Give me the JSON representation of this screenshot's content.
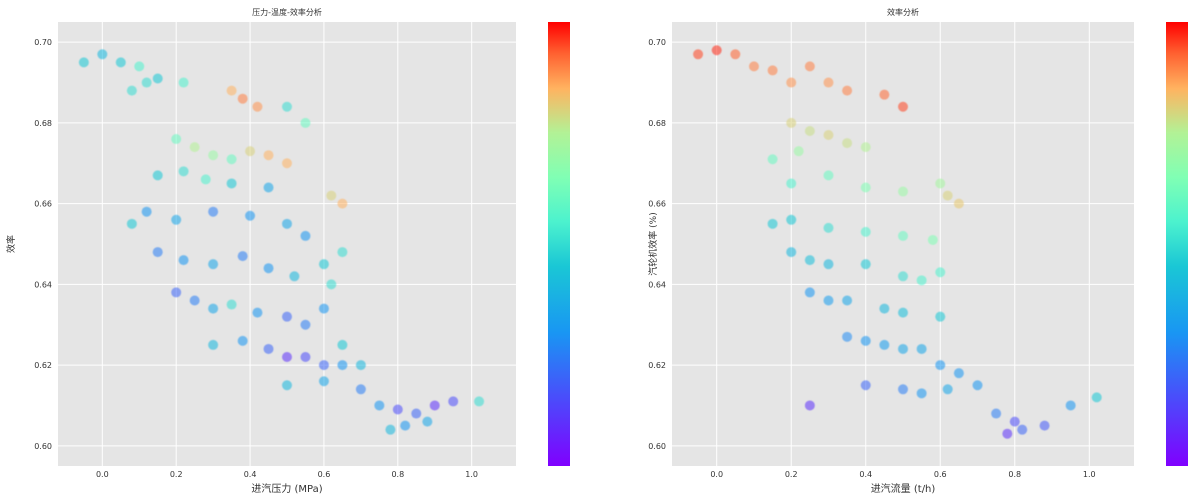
{
  "figure": {
    "background": "#ffffff",
    "plot_background": "#e5e5e5"
  },
  "chart_data": [
    {
      "type": "scatter",
      "title": "压力-温度-效率分析",
      "xlabel": "进汽压力 (MPa)",
      "ylabel": "效率",
      "xlim": [
        -0.12,
        1.12
      ],
      "ylim": [
        0.595,
        0.705
      ],
      "xticks": [
        "0.0",
        "0.2",
        "0.4",
        "0.6",
        "0.8",
        "1.0"
      ],
      "xtick_values": [
        0.0,
        0.2,
        0.4,
        0.6,
        0.8,
        1.0
      ],
      "yticks": [
        "0.60",
        "0.62",
        "0.64",
        "0.66",
        "0.68",
        "0.70"
      ],
      "ytick_values": [
        0.6,
        0.62,
        0.64,
        0.66,
        0.68,
        0.7
      ],
      "grid": true,
      "colorbar": {
        "colormap": "rainbow",
        "position": "right"
      },
      "series": [
        {
          "points": [
            [
              -0.05,
              0.695,
              0.45
            ],
            [
              0.0,
              0.697,
              0.4
            ],
            [
              0.05,
              0.695,
              0.45
            ],
            [
              0.08,
              0.688,
              0.5
            ],
            [
              0.1,
              0.694,
              0.55
            ],
            [
              0.12,
              0.69,
              0.5
            ],
            [
              0.15,
              0.691,
              0.45
            ],
            [
              0.22,
              0.69,
              0.55
            ],
            [
              0.35,
              0.688,
              0.85
            ],
            [
              0.38,
              0.686,
              0.9
            ],
            [
              0.42,
              0.684,
              0.88
            ],
            [
              0.5,
              0.684,
              0.5
            ],
            [
              0.55,
              0.68,
              0.6
            ],
            [
              0.2,
              0.676,
              0.6
            ],
            [
              0.25,
              0.674,
              0.75
            ],
            [
              0.3,
              0.672,
              0.7
            ],
            [
              0.35,
              0.671,
              0.6
            ],
            [
              0.4,
              0.673,
              0.8
            ],
            [
              0.45,
              0.672,
              0.85
            ],
            [
              0.5,
              0.67,
              0.85
            ],
            [
              0.15,
              0.667,
              0.45
            ],
            [
              0.22,
              0.668,
              0.5
            ],
            [
              0.28,
              0.666,
              0.55
            ],
            [
              0.35,
              0.665,
              0.45
            ],
            [
              0.45,
              0.664,
              0.35
            ],
            [
              0.62,
              0.662,
              0.8
            ],
            [
              0.65,
              0.66,
              0.85
            ],
            [
              0.08,
              0.655,
              0.45
            ],
            [
              0.12,
              0.658,
              0.3
            ],
            [
              0.2,
              0.656,
              0.35
            ],
            [
              0.3,
              0.658,
              0.25
            ],
            [
              0.4,
              0.657,
              0.3
            ],
            [
              0.5,
              0.655,
              0.35
            ],
            [
              0.55,
              0.652,
              0.3
            ],
            [
              0.15,
              0.648,
              0.25
            ],
            [
              0.22,
              0.646,
              0.3
            ],
            [
              0.3,
              0.645,
              0.35
            ],
            [
              0.38,
              0.647,
              0.25
            ],
            [
              0.45,
              0.644,
              0.3
            ],
            [
              0.52,
              0.642,
              0.4
            ],
            [
              0.6,
              0.645,
              0.45
            ],
            [
              0.65,
              0.648,
              0.5
            ],
            [
              0.2,
              0.638,
              0.2
            ],
            [
              0.25,
              0.636,
              0.25
            ],
            [
              0.3,
              0.634,
              0.35
            ],
            [
              0.35,
              0.635,
              0.5
            ],
            [
              0.42,
              0.633,
              0.3
            ],
            [
              0.5,
              0.632,
              0.2
            ],
            [
              0.55,
              0.63,
              0.25
            ],
            [
              0.6,
              0.634,
              0.3
            ],
            [
              0.3,
              0.625,
              0.4
            ],
            [
              0.38,
              0.626,
              0.3
            ],
            [
              0.45,
              0.624,
              0.2
            ],
            [
              0.5,
              0.622,
              0.1
            ],
            [
              0.55,
              0.622,
              0.15
            ],
            [
              0.6,
              0.62,
              0.2
            ],
            [
              0.65,
              0.62,
              0.3
            ],
            [
              0.7,
              0.62,
              0.4
            ],
            [
              0.5,
              0.615,
              0.4
            ],
            [
              0.6,
              0.616,
              0.35
            ],
            [
              0.7,
              0.614,
              0.25
            ],
            [
              0.75,
              0.61,
              0.3
            ],
            [
              0.8,
              0.609,
              0.15
            ],
            [
              0.85,
              0.608,
              0.2
            ],
            [
              0.9,
              0.61,
              0.1
            ],
            [
              0.95,
              0.611,
              0.15
            ],
            [
              0.78,
              0.604,
              0.4
            ],
            [
              0.82,
              0.605,
              0.3
            ],
            [
              0.88,
              0.606,
              0.35
            ],
            [
              1.02,
              0.611,
              0.5
            ],
            [
              0.62,
              0.64,
              0.5
            ],
            [
              0.65,
              0.625,
              0.45
            ]
          ]
        }
      ]
    },
    {
      "type": "scatter",
      "title": "效率分析",
      "xlabel": "进汽流量 (t/h)",
      "ylabel": "汽轮机效率 (%)",
      "xlim": [
        -0.12,
        1.12
      ],
      "ylim": [
        0.595,
        0.705
      ],
      "xticks": [
        "0.0",
        "0.2",
        "0.4",
        "0.6",
        "0.8",
        "1.0"
      ],
      "xtick_values": [
        0.0,
        0.2,
        0.4,
        0.6,
        0.8,
        1.0
      ],
      "yticks": [
        "0.60",
        "0.62",
        "0.64",
        "0.66",
        "0.68",
        "0.70"
      ],
      "ytick_values": [
        0.6,
        0.62,
        0.64,
        0.66,
        0.68,
        0.7
      ],
      "grid": true,
      "colorbar": {
        "colormap": "rainbow",
        "position": "right"
      },
      "series": [
        {
          "points": [
            [
              -0.05,
              0.697,
              0.95
            ],
            [
              0.0,
              0.698,
              0.97
            ],
            [
              0.05,
              0.697,
              0.93
            ],
            [
              0.1,
              0.694,
              0.9
            ],
            [
              0.15,
              0.693,
              0.9
            ],
            [
              0.2,
              0.69,
              0.88
            ],
            [
              0.25,
              0.694,
              0.9
            ],
            [
              0.3,
              0.69,
              0.88
            ],
            [
              0.35,
              0.688,
              0.9
            ],
            [
              0.45,
              0.687,
              0.92
            ],
            [
              0.5,
              0.684,
              0.95
            ],
            [
              0.2,
              0.68,
              0.8
            ],
            [
              0.25,
              0.678,
              0.78
            ],
            [
              0.3,
              0.677,
              0.8
            ],
            [
              0.35,
              0.675,
              0.78
            ],
            [
              0.4,
              0.674,
              0.75
            ],
            [
              0.15,
              0.671,
              0.6
            ],
            [
              0.22,
              0.673,
              0.7
            ],
            [
              0.2,
              0.665,
              0.55
            ],
            [
              0.3,
              0.667,
              0.6
            ],
            [
              0.4,
              0.664,
              0.65
            ],
            [
              0.5,
              0.663,
              0.7
            ],
            [
              0.6,
              0.665,
              0.72
            ],
            [
              0.62,
              0.662,
              0.8
            ],
            [
              0.65,
              0.66,
              0.82
            ],
            [
              0.15,
              0.655,
              0.45
            ],
            [
              0.2,
              0.656,
              0.45
            ],
            [
              0.3,
              0.654,
              0.5
            ],
            [
              0.4,
              0.653,
              0.55
            ],
            [
              0.5,
              0.652,
              0.6
            ],
            [
              0.58,
              0.651,
              0.65
            ],
            [
              0.2,
              0.648,
              0.4
            ],
            [
              0.25,
              0.646,
              0.42
            ],
            [
              0.3,
              0.645,
              0.4
            ],
            [
              0.4,
              0.645,
              0.45
            ],
            [
              0.5,
              0.642,
              0.5
            ],
            [
              0.55,
              0.641,
              0.55
            ],
            [
              0.6,
              0.643,
              0.55
            ],
            [
              0.25,
              0.638,
              0.3
            ],
            [
              0.3,
              0.636,
              0.32
            ],
            [
              0.35,
              0.636,
              0.35
            ],
            [
              0.45,
              0.634,
              0.4
            ],
            [
              0.5,
              0.633,
              0.42
            ],
            [
              0.6,
              0.632,
              0.45
            ],
            [
              0.35,
              0.627,
              0.28
            ],
            [
              0.4,
              0.626,
              0.3
            ],
            [
              0.45,
              0.625,
              0.32
            ],
            [
              0.5,
              0.624,
              0.35
            ],
            [
              0.55,
              0.624,
              0.35
            ],
            [
              0.6,
              0.62,
              0.3
            ],
            [
              0.65,
              0.618,
              0.3
            ],
            [
              0.4,
              0.615,
              0.2
            ],
            [
              0.5,
              0.614,
              0.25
            ],
            [
              0.55,
              0.613,
              0.3
            ],
            [
              0.62,
              0.614,
              0.35
            ],
            [
              0.7,
              0.615,
              0.3
            ],
            [
              0.25,
              0.61,
              0.1
            ],
            [
              0.75,
              0.608,
              0.25
            ],
            [
              0.8,
              0.606,
              0.15
            ],
            [
              0.82,
              0.604,
              0.2
            ],
            [
              0.88,
              0.605,
              0.18
            ],
            [
              0.95,
              0.61,
              0.3
            ],
            [
              1.02,
              0.612,
              0.45
            ],
            [
              0.78,
              0.603,
              0.1
            ]
          ]
        }
      ]
    }
  ]
}
